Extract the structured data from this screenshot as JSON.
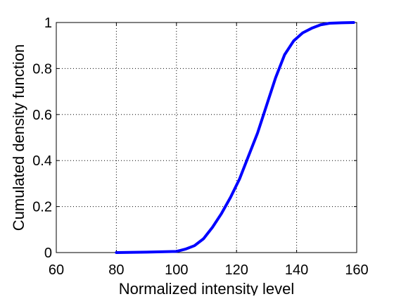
{
  "chart_data": {
    "type": "line",
    "title": "",
    "xlabel": "Normalized intensity level",
    "ylabel": "Cumulated density function",
    "xlim": [
      60,
      160
    ],
    "ylim": [
      0,
      1
    ],
    "xticks": [
      60,
      80,
      100,
      120,
      140,
      160
    ],
    "xtick_labels": [
      "60",
      "80",
      "100",
      "120",
      "140",
      "160"
    ],
    "yticks": [
      0,
      0.2,
      0.4,
      0.6,
      0.8,
      1
    ],
    "ytick_labels": [
      "0",
      "0.2",
      "0.4",
      "0.6",
      "0.8",
      "1"
    ],
    "grid": true,
    "series": [
      {
        "color": "#0000ff",
        "x": [
          80,
          90,
          100,
          103,
          106,
          109,
          112,
          115,
          118,
          121,
          124,
          127,
          130,
          133,
          136,
          139,
          142,
          145,
          148,
          151,
          155,
          159
        ],
        "y": [
          0.0,
          0.002,
          0.005,
          0.015,
          0.03,
          0.06,
          0.11,
          0.17,
          0.24,
          0.32,
          0.42,
          0.52,
          0.64,
          0.76,
          0.86,
          0.92,
          0.955,
          0.975,
          0.99,
          0.997,
          0.999,
          1.0
        ]
      }
    ]
  }
}
